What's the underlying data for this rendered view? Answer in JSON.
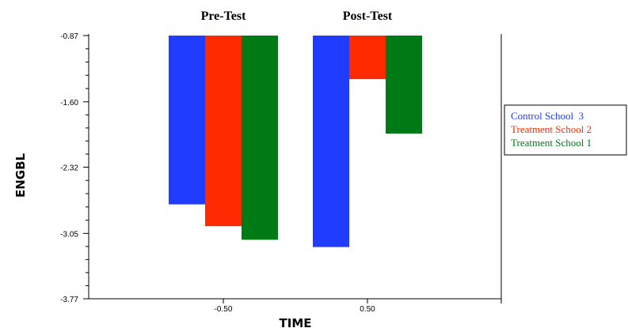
{
  "chart_data": {
    "type": "bar",
    "xlabel": "TIME",
    "ylabel": "ENGBL",
    "x_ticks": [
      "-0.50",
      "0.50"
    ],
    "y_ticks": [
      "-0.87",
      "-1.60",
      "-2.32",
      "-3.05",
      "-3.77"
    ],
    "ylim": [
      -3.77,
      -0.87
    ],
    "grid": false,
    "legend_position": "right",
    "groups": [
      {
        "label": "Pre-Test",
        "x": -0.5
      },
      {
        "label": "Post-Test",
        "x": 0.5
      }
    ],
    "series": [
      {
        "name": "Control School  3",
        "color": "#1f3cff",
        "values": [
          -2.73,
          -3.2
        ]
      },
      {
        "name": "Treatment School 2",
        "color": "#ff2a00",
        "values": [
          -2.97,
          -1.35
        ]
      },
      {
        "name": "Treatment School 1",
        "color": "#007a14",
        "values": [
          -3.12,
          -1.95
        ]
      }
    ]
  }
}
